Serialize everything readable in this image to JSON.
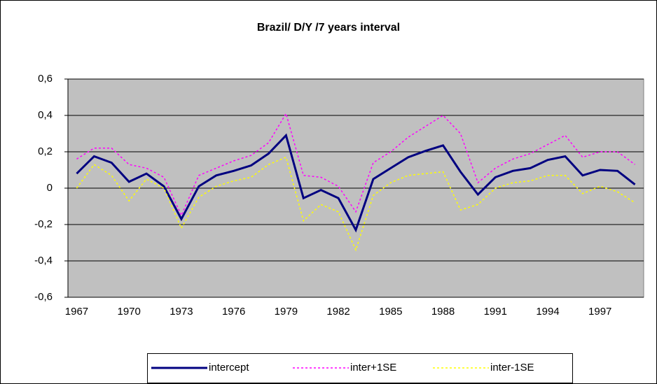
{
  "chart_data": {
    "type": "line",
    "title": "Brazil/ D/Y /7 years interval",
    "categories": [
      "1967",
      null,
      null,
      "1970",
      null,
      null,
      "1973",
      null,
      null,
      "1976",
      null,
      null,
      "1979",
      null,
      null,
      "1982",
      null,
      null,
      "1985",
      null,
      null,
      "1988",
      null,
      null,
      "1991",
      null,
      null,
      "1994",
      null,
      null,
      "1997",
      null,
      null
    ],
    "series": [
      {
        "name": "intercept",
        "color": "#000080",
        "dash": "solid",
        "values": [
          0.08,
          0.175,
          0.14,
          0.035,
          0.08,
          0.01,
          -0.17,
          0.01,
          0.07,
          0.095,
          0.125,
          0.19,
          0.29,
          -0.055,
          -0.01,
          -0.055,
          -0.23,
          0.05,
          0.11,
          0.17,
          0.205,
          0.235,
          0.09,
          -0.035,
          0.06,
          0.095,
          0.11,
          0.155,
          0.175,
          0.07,
          0.1,
          0.095,
          0.02
        ]
      },
      {
        "name": "inter+1SE",
        "color": "#ff00ff",
        "dash": "dotted",
        "values": [
          0.16,
          0.22,
          0.22,
          0.13,
          0.11,
          0.06,
          -0.15,
          0.07,
          0.11,
          0.15,
          0.18,
          0.25,
          0.41,
          0.07,
          0.06,
          0.01,
          -0.13,
          0.14,
          0.2,
          0.28,
          0.34,
          0.4,
          0.3,
          0.03,
          0.11,
          0.16,
          0.19,
          0.24,
          0.29,
          0.17,
          0.2,
          0.2,
          0.13
        ]
      },
      {
        "name": "inter-1SE",
        "color": "#ffff00",
        "dash": "dotted",
        "values": [
          0.0,
          0.13,
          0.07,
          -0.07,
          0.05,
          0.0,
          -0.22,
          -0.05,
          0.01,
          0.04,
          0.06,
          0.13,
          0.17,
          -0.18,
          -0.09,
          -0.13,
          -0.34,
          -0.04,
          0.03,
          0.07,
          0.08,
          0.09,
          -0.12,
          -0.09,
          0.0,
          0.03,
          0.04,
          0.07,
          0.07,
          -0.03,
          0.01,
          -0.02,
          -0.08
        ]
      }
    ],
    "ylim": [
      -0.6,
      0.6
    ],
    "yticks": [
      {
        "value": -0.6,
        "label": "-0,6"
      },
      {
        "value": -0.4,
        "label": "-0,4"
      },
      {
        "value": -0.2,
        "label": "-0,2"
      },
      0,
      {
        "value": 0.2,
        "label": "0,2"
      },
      {
        "value": 0.4,
        "label": "0,4"
      },
      {
        "value": 0.6,
        "label": "0,6"
      }
    ],
    "grid": true,
    "legend": "bottom"
  }
}
